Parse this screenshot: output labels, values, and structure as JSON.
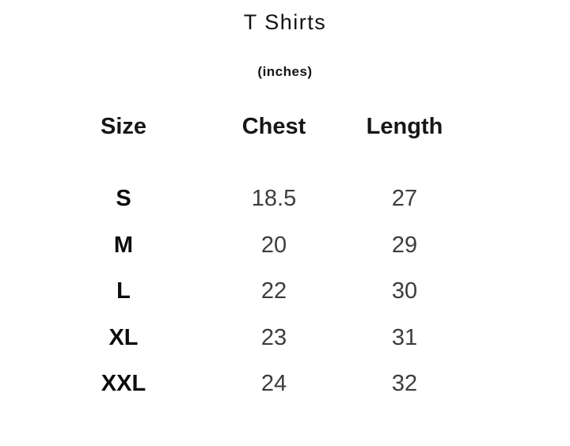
{
  "page": {
    "title": "T Shirts",
    "subtitle": "(inches)"
  },
  "table": {
    "columns": [
      "Size",
      "Chest",
      "Length"
    ],
    "rows": [
      {
        "size": "S",
        "chest": "18.5",
        "length": "27"
      },
      {
        "size": "M",
        "chest": "20",
        "length": "29"
      },
      {
        "size": "L",
        "chest": "22",
        "length": "30"
      },
      {
        "size": "XL",
        "chest": "23",
        "length": "31"
      },
      {
        "size": "XXL",
        "chest": "24",
        "length": "32"
      }
    ]
  },
  "chart_data": {
    "type": "table",
    "title": "T Shirts",
    "subtitle": "(inches)",
    "columns": [
      "Size",
      "Chest",
      "Length"
    ],
    "rows": [
      [
        "S",
        18.5,
        27
      ],
      [
        "M",
        20,
        29
      ],
      [
        "L",
        22,
        30
      ],
      [
        "XL",
        23,
        31
      ],
      [
        "XXL",
        24,
        32
      ]
    ]
  },
  "colors": {
    "background": "#ffffff",
    "heading_text": "#121212",
    "value_text": "#3d3d3d"
  }
}
